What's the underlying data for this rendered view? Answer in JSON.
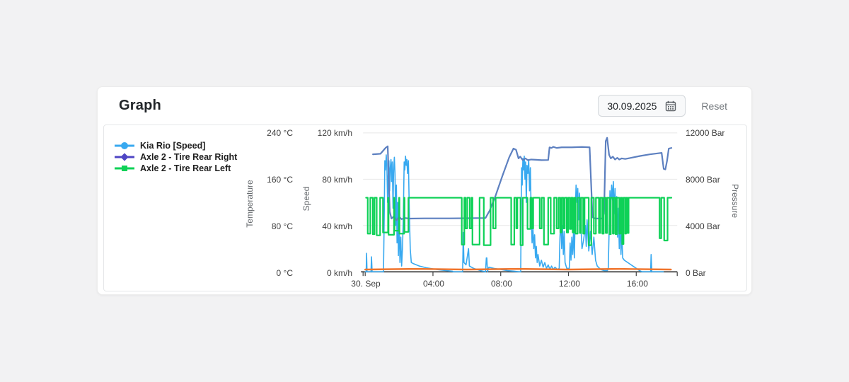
{
  "card": {
    "title": "Graph",
    "date_value": "30.09.2025",
    "reset_label": "Reset"
  },
  "legend": [
    {
      "label": "Kia Rio [Speed]",
      "marker": "circle",
      "color": "#38a9f0"
    },
    {
      "label": "Axle 2 - Tire Rear Right",
      "marker": "diamond",
      "color": "#4f46c4"
    },
    {
      "label": "Axle 2 - Tire Rear Left",
      "marker": "square",
      "color": "#0ed157"
    }
  ],
  "chart_data": {
    "type": "line",
    "x_axis": {
      "unit": "hours of 30 Sep",
      "range": [
        -0.125,
        18.42
      ],
      "tick_hours": [
        0,
        4,
        8,
        12,
        16
      ],
      "tick_labels": [
        "30. Sep",
        "04:00",
        "08:00",
        "12:00",
        "16:00"
      ]
    },
    "y_axes": [
      {
        "id": "temperature",
        "title": "Temperature",
        "range": [
          0,
          240
        ],
        "tick_labels": [
          "240 °C",
          "160 °C",
          "80 °C",
          "0 °C"
        ]
      },
      {
        "id": "speed",
        "title": "Speed",
        "range": [
          0,
          120
        ],
        "tick_labels": [
          "120 km/h",
          "80 km/h",
          "40 km/h",
          "0 km/h"
        ]
      },
      {
        "id": "pressure",
        "title": "Pressure",
        "range": [
          0,
          12000
        ],
        "tick_labels": [
          "12000 Bar",
          "8000 Bar",
          "4000 Bar",
          "0 Bar"
        ]
      }
    ],
    "grid": {
      "horizontal": true,
      "vertical": false,
      "color": "#e8e8e8",
      "axis_color": "#424242"
    },
    "series": [
      {
        "name": "Kia Rio [Speed]",
        "axis": "speed",
        "color": "#38a9f0",
        "width": 1.6,
        "points": [
          [
            0.0,
            0
          ],
          [
            0.06,
            0
          ],
          [
            0.08,
            16
          ],
          [
            0.11,
            0
          ],
          [
            0.34,
            0
          ],
          [
            0.37,
            13
          ],
          [
            0.41,
            0
          ],
          [
            1.08,
            0
          ],
          [
            1.13,
            55
          ],
          [
            1.16,
            96
          ],
          [
            1.2,
            88
          ],
          [
            1.24,
            101
          ],
          [
            1.28,
            92
          ],
          [
            1.32,
            60
          ],
          [
            1.36,
            83
          ],
          [
            1.4,
            96
          ],
          [
            1.44,
            70
          ],
          [
            1.48,
            90
          ],
          [
            1.52,
            97
          ],
          [
            1.56,
            78
          ],
          [
            1.6,
            95
          ],
          [
            1.64,
            55
          ],
          [
            1.68,
            88
          ],
          [
            1.72,
            99
          ],
          [
            1.76,
            85
          ],
          [
            1.8,
            40
          ],
          [
            1.84,
            75
          ],
          [
            1.88,
            25
          ],
          [
            1.92,
            60
          ],
          [
            1.96,
            14
          ],
          [
            2.0,
            45
          ],
          [
            2.05,
            8
          ],
          [
            2.1,
            30
          ],
          [
            2.15,
            5
          ],
          [
            2.2,
            20
          ],
          [
            2.25,
            48
          ],
          [
            2.3,
            95
          ],
          [
            2.34,
            88
          ],
          [
            2.38,
            100
          ],
          [
            2.42,
            92
          ],
          [
            2.46,
            97
          ],
          [
            2.5,
            85
          ],
          [
            2.55,
            96
          ],
          [
            2.6,
            55
          ],
          [
            2.66,
            20
          ],
          [
            2.72,
            8
          ],
          [
            2.85,
            7
          ],
          [
            3.2,
            5
          ],
          [
            3.6,
            3.5
          ],
          [
            4.2,
            2
          ],
          [
            4.8,
            1
          ],
          [
            5.15,
            0.5
          ],
          [
            5.2,
            0
          ],
          [
            5.75,
            0
          ],
          [
            5.79,
            34
          ],
          [
            5.83,
            8
          ],
          [
            5.95,
            6
          ],
          [
            6.1,
            20
          ],
          [
            6.15,
            5
          ],
          [
            6.4,
            3
          ],
          [
            6.8,
            1
          ],
          [
            7.1,
            0
          ],
          [
            7.15,
            12
          ],
          [
            7.18,
            12
          ],
          [
            7.22,
            0
          ],
          [
            7.3,
            4
          ],
          [
            7.6,
            3
          ],
          [
            8.0,
            2
          ],
          [
            8.4,
            1
          ],
          [
            8.8,
            0.5
          ],
          [
            9.1,
            0
          ],
          [
            9.18,
            0
          ],
          [
            9.2,
            42
          ],
          [
            9.23,
            90
          ],
          [
            9.27,
            75
          ],
          [
            9.31,
            98
          ],
          [
            9.35,
            88
          ],
          [
            9.39,
            100
          ],
          [
            9.43,
            80
          ],
          [
            9.47,
            95
          ],
          [
            9.51,
            60
          ],
          [
            9.55,
            92
          ],
          [
            9.6,
            85
          ],
          [
            9.65,
            97
          ],
          [
            9.7,
            70
          ],
          [
            9.75,
            90
          ],
          [
            9.8,
            45
          ],
          [
            9.85,
            25
          ],
          [
            9.9,
            38
          ],
          [
            9.95,
            20
          ],
          [
            10.0,
            32
          ],
          [
            10.05,
            12
          ],
          [
            10.1,
            22
          ],
          [
            10.15,
            8
          ],
          [
            10.2,
            15
          ],
          [
            10.3,
            5
          ],
          [
            10.4,
            10
          ],
          [
            10.5,
            4
          ],
          [
            10.6,
            8
          ],
          [
            10.7,
            3
          ],
          [
            10.8,
            6
          ],
          [
            10.9,
            2
          ],
          [
            11.0,
            5
          ],
          [
            11.1,
            2
          ],
          [
            11.2,
            4
          ],
          [
            11.35,
            2
          ],
          [
            11.45,
            3
          ],
          [
            11.5,
            30
          ],
          [
            11.55,
            45
          ],
          [
            11.6,
            20
          ],
          [
            11.65,
            40
          ],
          [
            11.7,
            15
          ],
          [
            11.75,
            35
          ],
          [
            11.8,
            8
          ],
          [
            11.9,
            3
          ],
          [
            12.05,
            3
          ],
          [
            12.1,
            25
          ],
          [
            12.15,
            10
          ],
          [
            12.2,
            30
          ],
          [
            12.25,
            15
          ],
          [
            12.3,
            35
          ],
          [
            12.35,
            12
          ],
          [
            12.4,
            50
          ],
          [
            12.45,
            75
          ],
          [
            12.5,
            60
          ],
          [
            12.55,
            72
          ],
          [
            12.6,
            45
          ],
          [
            12.65,
            68
          ],
          [
            12.7,
            55
          ],
          [
            12.75,
            35
          ],
          [
            12.8,
            20
          ],
          [
            12.9,
            28
          ],
          [
            13.0,
            40
          ],
          [
            13.05,
            22
          ],
          [
            13.1,
            45
          ],
          [
            13.2,
            18
          ],
          [
            13.3,
            35
          ],
          [
            13.4,
            15
          ],
          [
            13.5,
            30
          ],
          [
            13.6,
            10
          ],
          [
            13.7,
            5
          ],
          [
            13.9,
            2
          ],
          [
            14.1,
            1
          ],
          [
            14.3,
            1
          ],
          [
            14.35,
            3
          ],
          [
            14.4,
            35
          ],
          [
            14.45,
            70
          ],
          [
            14.5,
            55
          ],
          [
            14.55,
            75
          ],
          [
            14.6,
            62
          ],
          [
            14.65,
            78
          ],
          [
            14.7,
            50
          ],
          [
            14.75,
            72
          ],
          [
            14.8,
            40
          ],
          [
            14.85,
            65
          ],
          [
            14.9,
            30
          ],
          [
            14.95,
            55
          ],
          [
            15.0,
            20
          ],
          [
            15.05,
            45
          ],
          [
            15.1,
            15
          ],
          [
            15.15,
            35
          ],
          [
            15.2,
            12
          ],
          [
            15.3,
            10
          ],
          [
            15.6,
            7
          ],
          [
            15.9,
            4
          ],
          [
            16.2,
            1
          ],
          [
            16.35,
            0
          ],
          [
            16.85,
            0
          ],
          [
            16.88,
            15
          ],
          [
            16.92,
            0
          ],
          [
            17.6,
            0
          ]
        ]
      },
      {
        "name": "Axle 2 - Tire Rear Right",
        "axis": "pressure",
        "color": "#5d80c0",
        "width": 2.2,
        "points": [
          [
            0.46,
            10150
          ],
          [
            0.9,
            10200
          ],
          [
            1.2,
            10700
          ],
          [
            1.33,
            10850
          ],
          [
            1.45,
            5200
          ],
          [
            1.55,
            4600
          ],
          [
            1.7,
            4800
          ],
          [
            1.85,
            4450
          ],
          [
            2.0,
            4750
          ],
          [
            2.15,
            4550
          ],
          [
            2.35,
            4650
          ],
          [
            2.6,
            4600
          ],
          [
            3.5,
            4620
          ],
          [
            5.0,
            4620
          ],
          [
            7.1,
            4650
          ],
          [
            7.35,
            5300
          ],
          [
            7.7,
            6600
          ],
          [
            8.1,
            8300
          ],
          [
            8.5,
            9900
          ],
          [
            8.75,
            10650
          ],
          [
            8.9,
            10550
          ],
          [
            9.05,
            9800
          ],
          [
            9.15,
            9950
          ],
          [
            9.3,
            9650
          ],
          [
            9.45,
            9800
          ],
          [
            9.6,
            9650
          ],
          [
            9.8,
            9700
          ],
          [
            10.1,
            9680
          ],
          [
            10.4,
            9650
          ],
          [
            10.8,
            9660
          ],
          [
            10.88,
            10750
          ],
          [
            11.0,
            10700
          ],
          [
            11.1,
            10800
          ],
          [
            11.3,
            10700
          ],
          [
            11.6,
            10760
          ],
          [
            12.2,
            10760
          ],
          [
            12.8,
            10790
          ],
          [
            13.25,
            10760
          ],
          [
            13.42,
            4700
          ],
          [
            13.6,
            4600
          ],
          [
            14.0,
            4620
          ],
          [
            14.1,
            5000
          ],
          [
            14.2,
            11300
          ],
          [
            14.28,
            11580
          ],
          [
            14.4,
            10100
          ],
          [
            14.5,
            9800
          ],
          [
            14.62,
            9950
          ],
          [
            14.75,
            9700
          ],
          [
            14.88,
            9850
          ],
          [
            15.0,
            9700
          ],
          [
            15.15,
            9800
          ],
          [
            15.35,
            9750
          ],
          [
            15.7,
            9850
          ],
          [
            16.2,
            10000
          ],
          [
            16.8,
            10150
          ],
          [
            17.3,
            10240
          ],
          [
            17.5,
            10280
          ],
          [
            17.62,
            8900
          ],
          [
            17.72,
            8850
          ],
          [
            17.82,
            9600
          ],
          [
            17.92,
            10650
          ],
          [
            18.08,
            10700
          ]
        ]
      },
      {
        "name": "Axle 2 - Tire Rear Left",
        "axis": "pressure",
        "color": "#0ed157",
        "width": 2.2,
        "base": 6400,
        "start": 0.05,
        "end": 18.08,
        "dips": [
          [
            0.15,
            0.3,
            3300
          ],
          [
            0.45,
            0.55,
            3250
          ],
          [
            0.68,
            0.88,
            3150
          ],
          [
            1.05,
            1.35,
            3400
          ],
          [
            1.38,
            1.7,
            3200
          ],
          [
            1.73,
            2.0,
            3550
          ],
          [
            2.02,
            2.3,
            3300
          ],
          [
            2.32,
            2.55,
            3450
          ],
          [
            5.7,
            5.85,
            2350
          ],
          [
            5.92,
            6.02,
            3750
          ],
          [
            6.17,
            6.28,
            3750
          ],
          [
            6.33,
            6.75,
            2350
          ],
          [
            7.0,
            7.4,
            2300
          ],
          [
            7.55,
            7.7,
            3750
          ],
          [
            8.62,
            8.8,
            2350
          ],
          [
            8.92,
            8.98,
            3750
          ],
          [
            9.17,
            9.3,
            2300
          ],
          [
            9.58,
            9.75,
            3700
          ],
          [
            9.83,
            9.92,
            3750
          ],
          [
            10.3,
            10.42,
            3750
          ],
          [
            10.55,
            10.8,
            2350
          ],
          [
            10.95,
            11.15,
            3300
          ],
          [
            11.3,
            11.42,
            3750
          ],
          [
            11.52,
            11.6,
            3400
          ],
          [
            11.7,
            11.78,
            3750
          ],
          [
            11.9,
            11.98,
            3400
          ],
          [
            12.08,
            12.16,
            3700
          ],
          [
            12.25,
            12.33,
            3400
          ],
          [
            12.42,
            12.54,
            3300
          ],
          [
            12.67,
            12.75,
            3350
          ],
          [
            12.87,
            12.95,
            3300
          ],
          [
            13.2,
            13.35,
            2300
          ],
          [
            13.5,
            13.62,
            3300
          ],
          [
            13.8,
            13.88,
            3350
          ],
          [
            14.0,
            14.08,
            3300
          ],
          [
            14.2,
            14.28,
            3350
          ],
          [
            14.42,
            14.5,
            3250
          ],
          [
            14.62,
            14.68,
            3300
          ],
          [
            14.78,
            14.86,
            3250
          ],
          [
            15.0,
            15.08,
            3300
          ],
          [
            15.17,
            15.25,
            2400
          ],
          [
            15.35,
            15.4,
            3300
          ],
          [
            15.48,
            15.55,
            3350
          ],
          [
            17.38,
            17.48,
            2900
          ],
          [
            17.65,
            17.85,
            2700
          ]
        ]
      },
      {
        "name": "unlabeled-orange-temperature-line",
        "axis": "temperature",
        "color": "#f0742c",
        "width": 2.5,
        "points": [
          [
            0.0,
            4
          ],
          [
            3.0,
            5
          ],
          [
            6.0,
            4
          ],
          [
            9.0,
            5
          ],
          [
            12.0,
            4
          ],
          [
            15.0,
            5
          ],
          [
            18.05,
            4
          ]
        ]
      }
    ]
  }
}
